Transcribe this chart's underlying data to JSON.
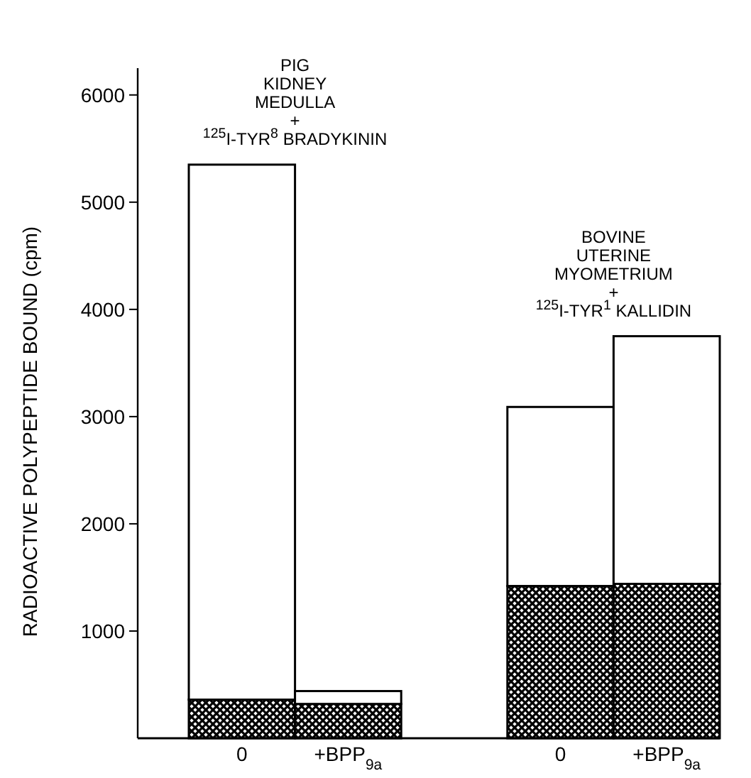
{
  "chart_data": {
    "type": "bar",
    "stacked": true,
    "ylabel": "RADIOACTIVE POLYPEPTIDE BOUND (cpm)",
    "categories": [
      "0",
      "+BPP$_{9a}$",
      null,
      "0",
      "+BPP$_{9a}$"
    ],
    "series": [
      {
        "color": "#000000",
        "values": [
          360,
          320,
          null,
          1420,
          1440
        ]
      },
      {
        "color": "#ffffff",
        "values": [
          4990,
          120,
          null,
          1670,
          2310
        ]
      }
    ],
    "ylim": [
      0,
      6250
    ],
    "yticks": [
      1000,
      2000,
      3000,
      4000,
      5000,
      6000
    ],
    "grid": false,
    "annotations": [
      "PIG\nKIDNEY\nMEDULLA\n+\n$^{125}$I-TYR$^{8}$ BRADYKININ",
      "BOVINE\nUTERINE\nMYOMETRIUM\n+\n$^{125}$I-TYR$^{1}$ KALLIDIN"
    ]
  }
}
